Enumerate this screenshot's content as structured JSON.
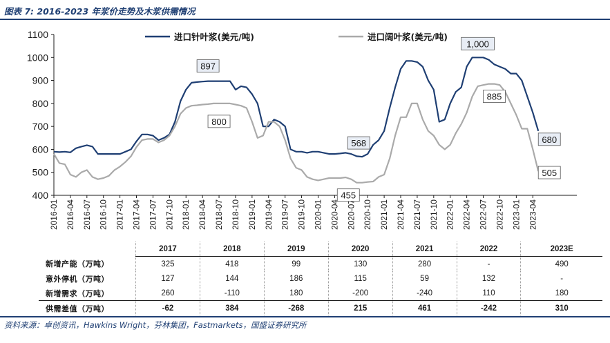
{
  "figure_title": "图表 7:  2016-2023 年浆价走势及木浆供需情况",
  "source_text": "资料来源：卓创资讯，Hawkins Wright，芬林集团，Fastmarkets，国盛证券研究所",
  "colors": {
    "softwood": "#1f3f73",
    "hardwood": "#aaaaaa",
    "accent": "#1f3f73"
  },
  "chart_data": {
    "type": "line",
    "title": "",
    "xlabel": "",
    "ylabel": "",
    "ylim": [
      400,
      1100
    ],
    "yticks": [
      "400",
      "500",
      "600",
      "700",
      "800",
      "900",
      "1000",
      "1100"
    ],
    "xlim": [
      0,
      95
    ],
    "xticks": [
      {
        "label": "2016-01",
        "x": 0
      },
      {
        "label": "2016-04",
        "x": 3
      },
      {
        "label": "2016-07",
        "x": 6
      },
      {
        "label": "2016-10",
        "x": 9
      },
      {
        "label": "2017-01",
        "x": 12
      },
      {
        "label": "2017-04",
        "x": 15
      },
      {
        "label": "2017-07",
        "x": 18
      },
      {
        "label": "2017-10",
        "x": 21
      },
      {
        "label": "2018-01",
        "x": 24
      },
      {
        "label": "2018-04",
        "x": 27
      },
      {
        "label": "2018-07",
        "x": 30
      },
      {
        "label": "2018-10",
        "x": 33
      },
      {
        "label": "2019-01",
        "x": 36
      },
      {
        "label": "2019-04",
        "x": 39
      },
      {
        "label": "2019-07",
        "x": 42
      },
      {
        "label": "2019-10",
        "x": 45
      },
      {
        "label": "2020-01",
        "x": 48
      },
      {
        "label": "2020-04",
        "x": 51
      },
      {
        "label": "2020-07",
        "x": 54
      },
      {
        "label": "2020-10",
        "x": 57
      },
      {
        "label": "2021-01",
        "x": 60
      },
      {
        "label": "2021-04",
        "x": 63
      },
      {
        "label": "2021-07",
        "x": 66
      },
      {
        "label": "2021-10",
        "x": 69
      },
      {
        "label": "2022-01",
        "x": 72
      },
      {
        "label": "2022-04",
        "x": 75
      },
      {
        "label": "2022-07",
        "x": 78
      },
      {
        "label": "2022-10",
        "x": 81
      },
      {
        "label": "2023-01",
        "x": 84
      },
      {
        "label": "2023-04",
        "x": 87
      }
    ],
    "series": [
      {
        "name": "进口针叶浆(美元/吨)",
        "color": "#1f3f73",
        "points": [
          [
            0,
            590
          ],
          [
            1,
            588
          ],
          [
            2,
            590
          ],
          [
            3,
            587
          ],
          [
            4,
            605
          ],
          [
            5,
            612
          ],
          [
            6,
            618
          ],
          [
            7,
            612
          ],
          [
            8,
            580
          ],
          [
            9,
            580
          ],
          [
            10,
            580
          ],
          [
            11,
            580
          ],
          [
            12,
            580
          ],
          [
            13,
            590
          ],
          [
            14,
            600
          ],
          [
            15,
            635
          ],
          [
            16,
            665
          ],
          [
            17,
            665
          ],
          [
            18,
            660
          ],
          [
            19,
            640
          ],
          [
            20,
            650
          ],
          [
            21,
            665
          ],
          [
            22,
            720
          ],
          [
            23,
            810
          ],
          [
            24,
            860
          ],
          [
            25,
            890
          ],
          [
            26,
            893
          ],
          [
            27,
            895
          ],
          [
            28,
            897
          ],
          [
            29,
            897
          ],
          [
            30,
            897
          ],
          [
            31,
            897
          ],
          [
            32,
            897
          ],
          [
            33,
            860
          ],
          [
            34,
            875
          ],
          [
            35,
            870
          ],
          [
            36,
            840
          ],
          [
            37,
            800
          ],
          [
            38,
            700
          ],
          [
            39,
            700
          ],
          [
            40,
            730
          ],
          [
            41,
            720
          ],
          [
            42,
            700
          ],
          [
            43,
            600
          ],
          [
            44,
            590
          ],
          [
            45,
            590
          ],
          [
            46,
            585
          ],
          [
            47,
            590
          ],
          [
            48,
            590
          ],
          [
            49,
            585
          ],
          [
            50,
            580
          ],
          [
            51,
            580
          ],
          [
            52,
            582
          ],
          [
            53,
            585
          ],
          [
            54,
            580
          ],
          [
            55,
            570
          ],
          [
            56,
            568
          ],
          [
            57,
            580
          ],
          [
            58,
            620
          ],
          [
            59,
            640
          ],
          [
            60,
            680
          ],
          [
            61,
            780
          ],
          [
            62,
            870
          ],
          [
            63,
            950
          ],
          [
            64,
            985
          ],
          [
            65,
            985
          ],
          [
            66,
            980
          ],
          [
            67,
            960
          ],
          [
            68,
            900
          ],
          [
            69,
            860
          ],
          [
            70,
            720
          ],
          [
            71,
            730
          ],
          [
            72,
            800
          ],
          [
            73,
            850
          ],
          [
            74,
            870
          ],
          [
            75,
            960
          ],
          [
            76,
            1000
          ],
          [
            77,
            1000
          ],
          [
            78,
            1000
          ],
          [
            79,
            990
          ],
          [
            80,
            970
          ],
          [
            81,
            960
          ],
          [
            82,
            950
          ],
          [
            83,
            930
          ],
          [
            84,
            930
          ],
          [
            85,
            900
          ],
          [
            86,
            830
          ],
          [
            87,
            760
          ],
          [
            88,
            680
          ]
        ]
      },
      {
        "name": "进口阔叶浆(美元/吨)",
        "color": "#aaaaaa",
        "points": [
          [
            0,
            580
          ],
          [
            1,
            540
          ],
          [
            2,
            535
          ],
          [
            3,
            490
          ],
          [
            4,
            480
          ],
          [
            5,
            500
          ],
          [
            6,
            510
          ],
          [
            7,
            480
          ],
          [
            8,
            470
          ],
          [
            9,
            475
          ],
          [
            10,
            485
          ],
          [
            11,
            510
          ],
          [
            12,
            525
          ],
          [
            13,
            545
          ],
          [
            14,
            570
          ],
          [
            15,
            610
          ],
          [
            16,
            640
          ],
          [
            17,
            645
          ],
          [
            18,
            645
          ],
          [
            19,
            630
          ],
          [
            20,
            640
          ],
          [
            21,
            660
          ],
          [
            22,
            700
          ],
          [
            23,
            755
          ],
          [
            24,
            780
          ],
          [
            25,
            790
          ],
          [
            26,
            792
          ],
          [
            27,
            795
          ],
          [
            28,
            797
          ],
          [
            29,
            800
          ],
          [
            30,
            800
          ],
          [
            31,
            800
          ],
          [
            32,
            800
          ],
          [
            33,
            795
          ],
          [
            34,
            790
          ],
          [
            35,
            780
          ],
          [
            36,
            720
          ],
          [
            37,
            650
          ],
          [
            38,
            660
          ],
          [
            39,
            720
          ],
          [
            40,
            720
          ],
          [
            41,
            700
          ],
          [
            42,
            640
          ],
          [
            43,
            560
          ],
          [
            44,
            520
          ],
          [
            45,
            510
          ],
          [
            46,
            480
          ],
          [
            47,
            470
          ],
          [
            48,
            465
          ],
          [
            49,
            470
          ],
          [
            50,
            475
          ],
          [
            51,
            475
          ],
          [
            52,
            475
          ],
          [
            53,
            478
          ],
          [
            54,
            470
          ],
          [
            55,
            455
          ],
          [
            56,
            455
          ],
          [
            57,
            458
          ],
          [
            58,
            460
          ],
          [
            59,
            480
          ],
          [
            60,
            490
          ],
          [
            61,
            560
          ],
          [
            62,
            660
          ],
          [
            63,
            740
          ],
          [
            64,
            740
          ],
          [
            65,
            800
          ],
          [
            66,
            800
          ],
          [
            67,
            730
          ],
          [
            68,
            680
          ],
          [
            69,
            660
          ],
          [
            70,
            620
          ],
          [
            71,
            600
          ],
          [
            72,
            620
          ],
          [
            73,
            670
          ],
          [
            74,
            710
          ],
          [
            75,
            760
          ],
          [
            76,
            830
          ],
          [
            77,
            875
          ],
          [
            78,
            880
          ],
          [
            79,
            885
          ],
          [
            80,
            885
          ],
          [
            81,
            880
          ],
          [
            82,
            850
          ],
          [
            83,
            800
          ],
          [
            84,
            750
          ],
          [
            85,
            690
          ],
          [
            86,
            690
          ],
          [
            87,
            600
          ],
          [
            88,
            505
          ]
        ]
      }
    ],
    "annotations": [
      {
        "label": "897",
        "x": 28,
        "y": 897,
        "series": 0,
        "dx": 0,
        "dy": -22
      },
      {
        "label": "800",
        "x": 30,
        "y": 800,
        "series": 1,
        "dx": 0,
        "dy": 26
      },
      {
        "label": "568",
        "x": 56,
        "y": 568,
        "series": 0,
        "dx": -5,
        "dy": -20
      },
      {
        "label": "455",
        "x": 55,
        "y": 455,
        "series": 1,
        "dx": -12,
        "dy": 18
      },
      {
        "label": "1,000",
        "x": 77,
        "y": 1000,
        "series": 0,
        "dx": 0,
        "dy": -20
      },
      {
        "label": "885",
        "x": 80,
        "y": 885,
        "series": 1,
        "dx": 0,
        "dy": 18
      },
      {
        "label": "680",
        "x": 88,
        "y": 680,
        "series": 0,
        "dx": 16,
        "dy": 12
      },
      {
        "label": "505",
        "x": 88,
        "y": 505,
        "series": 1,
        "dx": 16,
        "dy": 2
      }
    ],
    "legend": "top-center"
  },
  "table": {
    "headers": [
      "",
      "2017",
      "2018",
      "2019",
      "2020",
      "2021",
      "2022",
      "2023E"
    ],
    "rows": [
      {
        "label": "新增产能（万吨）",
        "values": [
          "325",
          "418",
          "99",
          "130",
          "280",
          "-",
          "490"
        ]
      },
      {
        "label": "意外停机（万吨）",
        "values": [
          "127",
          "144",
          "186",
          "115",
          "59",
          "132",
          "-"
        ]
      },
      {
        "label": "新增需求（万吨）",
        "values": [
          "260",
          "-110",
          "180",
          "-200",
          "-240",
          "110",
          "180"
        ]
      },
      {
        "label": "供需差值（万吨）",
        "values": [
          "-62",
          "384",
          "-268",
          "215",
          "461",
          "-242",
          "310"
        ]
      }
    ]
  }
}
